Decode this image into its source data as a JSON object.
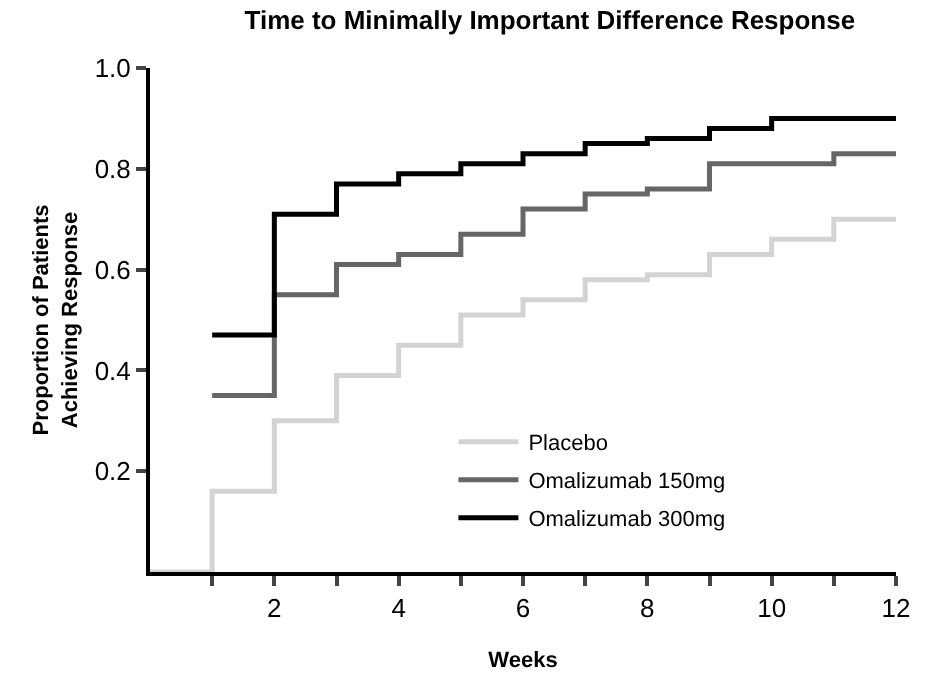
{
  "chart_data": {
    "type": "step",
    "title": "Time to Minimally Important Difference Response",
    "xlabel": "Weeks",
    "ylabel": "Proportion of Patients\nAchieving Response",
    "xlim": [
      0,
      12
    ],
    "xticks": [
      {
        "value": 1,
        "label": null
      },
      2,
      {
        "value": 3,
        "label": null
      },
      4,
      {
        "value": 5,
        "label": null
      },
      6,
      {
        "value": 7,
        "label": null
      },
      8,
      {
        "value": 9,
        "label": null
      },
      10,
      {
        "value": 11,
        "label": null
      },
      12
    ],
    "ylim": [
      0,
      1
    ],
    "yticks": [
      0.2,
      0.4,
      0.6,
      0.8,
      {
        "value": 1.0,
        "label": "1.0"
      }
    ],
    "legend": "bottom right",
    "marker": "none",
    "line_style": "solid",
    "series": [
      {
        "name": "Placebo",
        "color": "#d3d3d3",
        "x": [
          0,
          1,
          2,
          3,
          4,
          5,
          6,
          7,
          8,
          9,
          10,
          11,
          12
        ],
        "values": [
          0,
          0.16,
          0.3,
          0.39,
          0.45,
          0.51,
          0.54,
          0.58,
          0.59,
          0.63,
          0.66,
          0.7,
          0.7
        ]
      },
      {
        "name": "Omalizumab 150mg",
        "color": "#666666",
        "x": [
          1,
          2,
          3,
          4,
          5,
          6,
          7,
          8,
          9,
          10,
          11,
          12
        ],
        "values": [
          0.35,
          0.55,
          0.61,
          0.63,
          0.67,
          0.72,
          0.75,
          0.76,
          0.81,
          0.81,
          0.83,
          0.83
        ]
      },
      {
        "name": "Omalizumab 300mg",
        "color": "#000000",
        "x": [
          1,
          2,
          3,
          4,
          5,
          6,
          7,
          8,
          9,
          10,
          11,
          12
        ],
        "values": [
          0.47,
          0.71,
          0.77,
          0.79,
          0.81,
          0.83,
          0.85,
          0.86,
          0.88,
          0.9,
          0.9,
          0.9
        ]
      }
    ]
  }
}
